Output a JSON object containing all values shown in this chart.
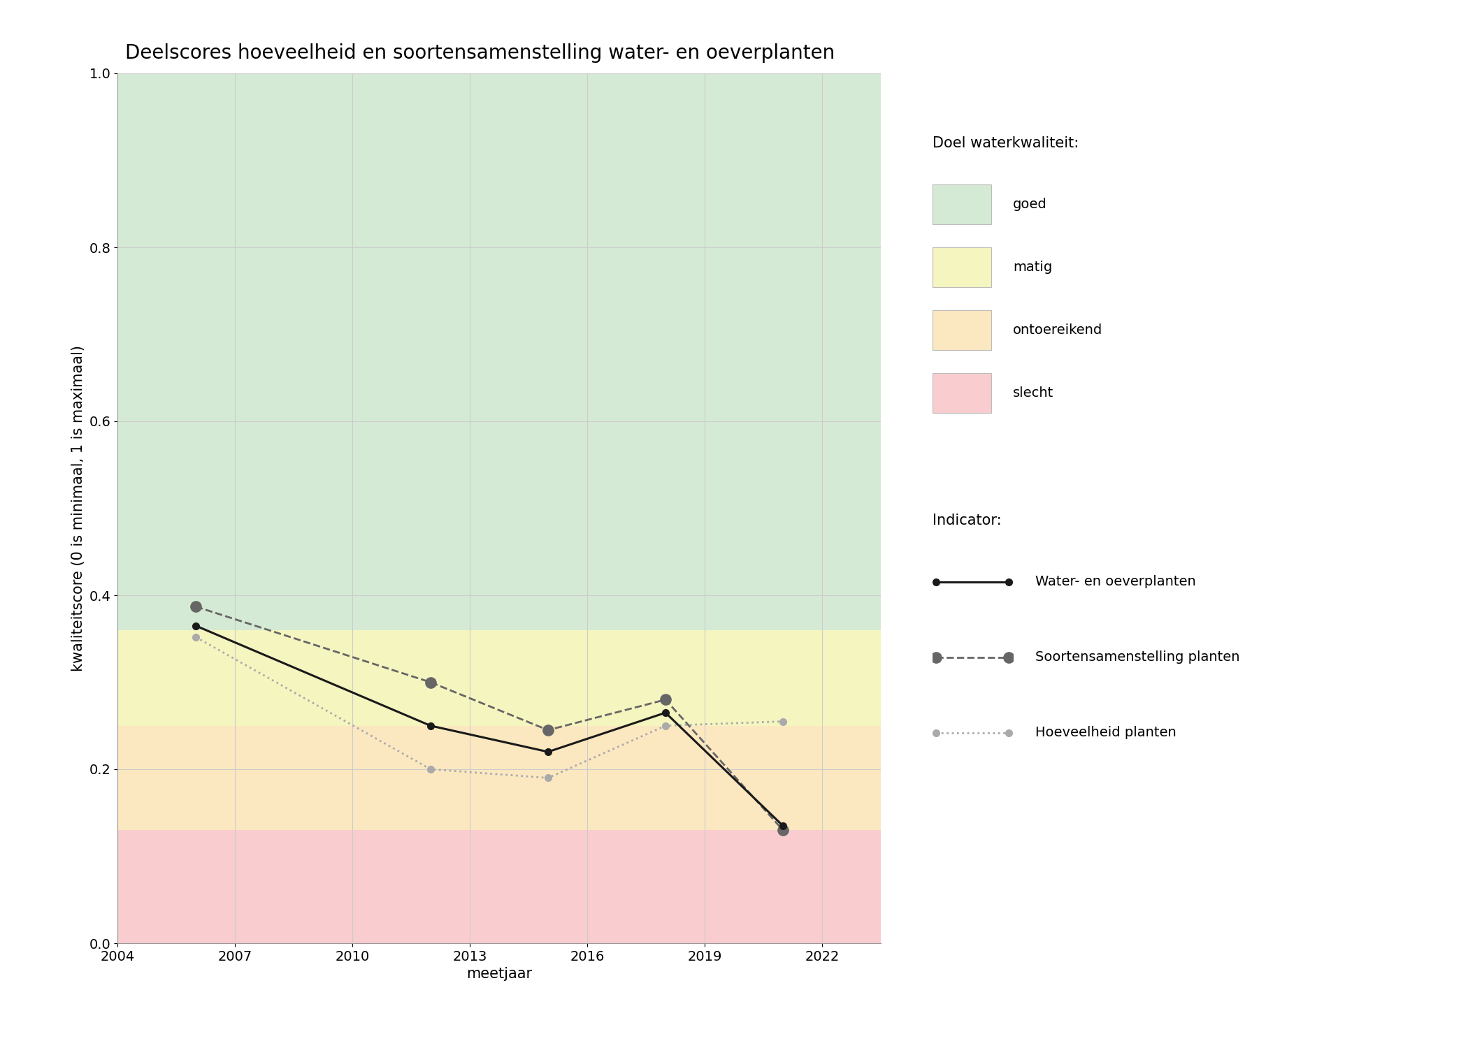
{
  "title": "Deelscores hoeveelheid en soortensamenstelling water- en oeverplanten",
  "xlabel": "meetjaar",
  "ylabel": "kwaliteitscore (0 is minimaal, 1 is maximaal)",
  "xlim": [
    2004,
    2023.5
  ],
  "ylim": [
    0.0,
    1.0
  ],
  "xticks": [
    2004,
    2007,
    2010,
    2013,
    2016,
    2019,
    2022
  ],
  "yticks": [
    0.0,
    0.2,
    0.4,
    0.6,
    0.8,
    1.0
  ],
  "fig_bg_color": "#ffffff",
  "plot_bg_color": "#ffffff",
  "grid_color": "#cccccc",
  "zones_ordered": [
    "slecht",
    "ontoereikend",
    "matig",
    "goed"
  ],
  "zones": {
    "goed": {
      "ymin": 0.36,
      "ymax": 1.0,
      "color": "#d5ead4"
    },
    "matig": {
      "ymin": 0.25,
      "ymax": 0.36,
      "color": "#f5f5c0"
    },
    "ontoereikend": {
      "ymin": 0.13,
      "ymax": 0.25,
      "color": "#fce8c0"
    },
    "slecht": {
      "ymin": 0.0,
      "ymax": 0.13,
      "color": "#f9cdd0"
    }
  },
  "line_water_oever": {
    "x": [
      2006,
      2012,
      2015,
      2018,
      2021
    ],
    "y": [
      0.365,
      0.25,
      0.22,
      0.265,
      0.135
    ],
    "color": "#1a1a1a",
    "linestyle": "-",
    "linewidth": 2.2,
    "marker": "o",
    "markersize": 7,
    "label": "Water- en oeverplanten",
    "zorder": 5
  },
  "line_soorten": {
    "x": [
      2006,
      2012,
      2015,
      2018,
      2021
    ],
    "y": [
      0.387,
      0.3,
      0.245,
      0.28,
      0.13
    ],
    "color": "#666666",
    "linestyle": "--",
    "linewidth": 2.0,
    "marker": "o",
    "markersize": 11,
    "label": "Soortensamenstelling planten",
    "zorder": 4
  },
  "line_hoeveelheid": {
    "x": [
      2006,
      2012,
      2015,
      2018,
      2021
    ],
    "y": [
      0.352,
      0.2,
      0.19,
      0.25,
      0.255
    ],
    "color": "#aaaaaa",
    "linestyle": ":",
    "linewidth": 2.0,
    "marker": "o",
    "markersize": 7,
    "label": "Hoeveelheid planten",
    "zorder": 3
  },
  "legend_quality_colors": {
    "goed": "#d5ead4",
    "matig": "#f5f5c0",
    "ontoereikend": "#fce8c0",
    "slecht": "#f9cdd0"
  },
  "legend_quality_labels": [
    "goed",
    "matig",
    "ontoereikend",
    "slecht"
  ],
  "doel_header": "Doel waterkwaliteit:",
  "indicator_header": "Indicator:",
  "title_fontsize": 20,
  "label_fontsize": 15,
  "tick_fontsize": 14,
  "legend_fontsize": 14
}
